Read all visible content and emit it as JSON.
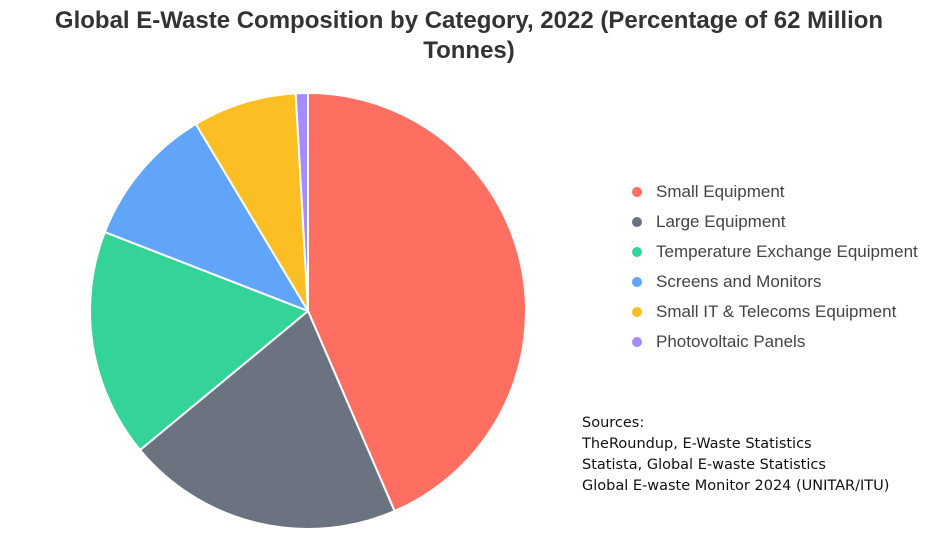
{
  "chart_data": {
    "type": "pie",
    "title_lines": [
      "Global E-Waste Composition by Category, 2022 (Percentage of 62 Million",
      "Tonnes)"
    ],
    "categories": [
      "Small Equipment",
      "Large Equipment",
      "Temperature Exchange Equipment",
      "Screens and Monitors",
      "Small IT & Telecoms Equipment",
      "Photovoltaic Panels"
    ],
    "values": [
      43.5,
      20.5,
      16.9,
      10.5,
      7.7,
      0.9
    ],
    "unit": "%",
    "colors": [
      "#ff6f61",
      "#6b7280",
      "#34d399",
      "#60a5fa",
      "#fbbf24",
      "#a78bfa"
    ],
    "legend_position": "right"
  },
  "sources": {
    "heading": "Sources:",
    "lines": [
      "TheRoundup, E-Waste Statistics",
      "Statista, Global E-waste Statistics",
      "Global E-waste Monitor 2024 (UNITAR/ITU)"
    ]
  }
}
